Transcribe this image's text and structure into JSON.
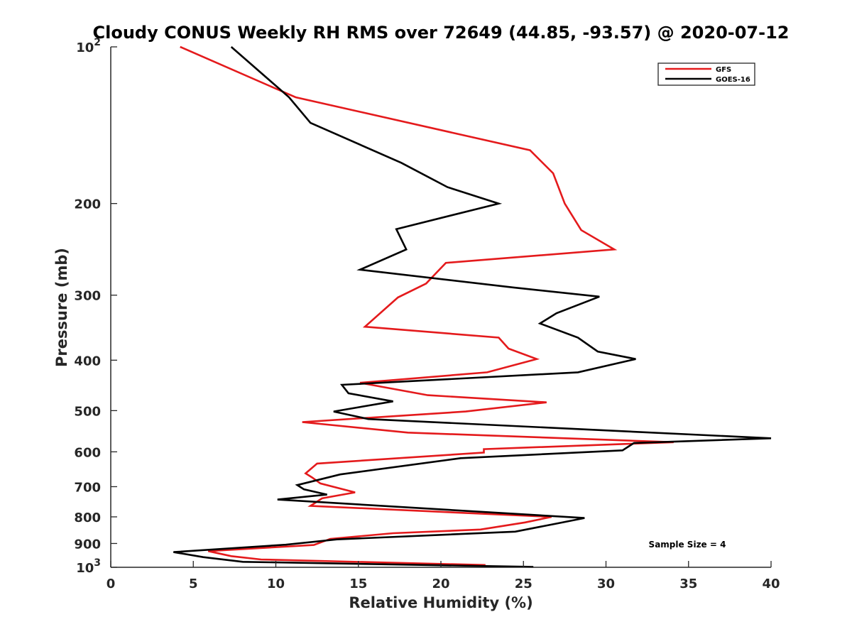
{
  "chart_data": {
    "type": "line",
    "title": "Cloudy CONUS Weekly RH RMS over 72649 (44.85, -93.57) @ 2020-07-12",
    "xlabel": "Relative Humidity (%)",
    "ylabel": "Pressure (mb)",
    "xlim": [
      0,
      40
    ],
    "ylim": [
      1000,
      100
    ],
    "y_scale": "log",
    "y_reversed": true,
    "x_ticks": [
      0,
      5,
      10,
      15,
      20,
      25,
      30,
      35,
      40
    ],
    "x_tick_labels": [
      "0",
      "5",
      "10",
      "15",
      "20",
      "25",
      "30",
      "35",
      "40"
    ],
    "y_ticks": [
      100,
      200,
      300,
      400,
      500,
      600,
      700,
      800,
      900,
      1000
    ],
    "y_tick_labels": [
      "10^2",
      "200",
      "300",
      "400",
      "500",
      "600",
      "700",
      "800",
      "900",
      "10^3"
    ],
    "grid": false,
    "legend_location": "top-right",
    "annotation": "Sample Size = 4",
    "series": [
      {
        "name": "GFS",
        "color": "#e41a1c",
        "points": [
          [
            4.2,
            100
          ],
          [
            11.2,
            125
          ],
          [
            25.4,
            158
          ],
          [
            26.8,
            175
          ],
          [
            27.5,
            200
          ],
          [
            28.5,
            225
          ],
          [
            30.5,
            245
          ],
          [
            20.3,
            260
          ],
          [
            19.1,
            285
          ],
          [
            17.4,
            303
          ],
          [
            15.4,
            345
          ],
          [
            23.5,
            362
          ],
          [
            24.1,
            380
          ],
          [
            25.8,
            398
          ],
          [
            22.8,
            422
          ],
          [
            15.1,
            442
          ],
          [
            19.2,
            467
          ],
          [
            26.4,
            482
          ],
          [
            21.5,
            502
          ],
          [
            11.6,
            526
          ],
          [
            18.0,
            551
          ],
          [
            34.1,
            575
          ],
          [
            22.6,
            593
          ],
          [
            22.6,
            602
          ],
          [
            12.5,
            632
          ],
          [
            11.8,
            660
          ],
          [
            12.2,
            672
          ],
          [
            12.7,
            690
          ],
          [
            14.8,
            718
          ],
          [
            12.8,
            737
          ],
          [
            12.1,
            762
          ],
          [
            26.7,
            800
          ],
          [
            25.1,
            820
          ],
          [
            22.4,
            846
          ],
          [
            17.1,
            860
          ],
          [
            13.3,
            882
          ],
          [
            12.3,
            906
          ],
          [
            5.9,
            931
          ],
          [
            7.3,
            952
          ],
          [
            9.1,
            966
          ],
          [
            22.7,
            990
          ]
        ]
      },
      {
        "name": "GOES-16",
        "color": "#000000",
        "points": [
          [
            7.3,
            100
          ],
          [
            10.8,
            125
          ],
          [
            12.1,
            140
          ],
          [
            17.6,
            167
          ],
          [
            20.4,
            186
          ],
          [
            23.5,
            200
          ],
          [
            17.3,
            224
          ],
          [
            17.9,
            245
          ],
          [
            15.1,
            268
          ],
          [
            24.4,
            290
          ],
          [
            29.6,
            302
          ],
          [
            27.0,
            325
          ],
          [
            26.0,
            340
          ],
          [
            28.3,
            362
          ],
          [
            29.5,
            385
          ],
          [
            31.8,
            398
          ],
          [
            28.3,
            422
          ],
          [
            14.0,
            446
          ],
          [
            14.4,
            463
          ],
          [
            17.1,
            480
          ],
          [
            13.5,
            502
          ],
          [
            15.6,
            519
          ],
          [
            40.0,
            565
          ],
          [
            31.7,
            577
          ],
          [
            31.0,
            596
          ],
          [
            21.2,
            617
          ],
          [
            13.9,
            663
          ],
          [
            11.3,
            695
          ],
          [
            11.7,
            708
          ],
          [
            13.1,
            725
          ],
          [
            10.1,
            741
          ],
          [
            28.7,
            804
          ],
          [
            27.1,
            823
          ],
          [
            24.5,
            854
          ],
          [
            13.7,
            884
          ],
          [
            10.6,
            905
          ],
          [
            3.8,
            935
          ],
          [
            5.6,
            956
          ],
          [
            8.0,
            976
          ],
          [
            25.6,
            998
          ]
        ]
      }
    ]
  }
}
